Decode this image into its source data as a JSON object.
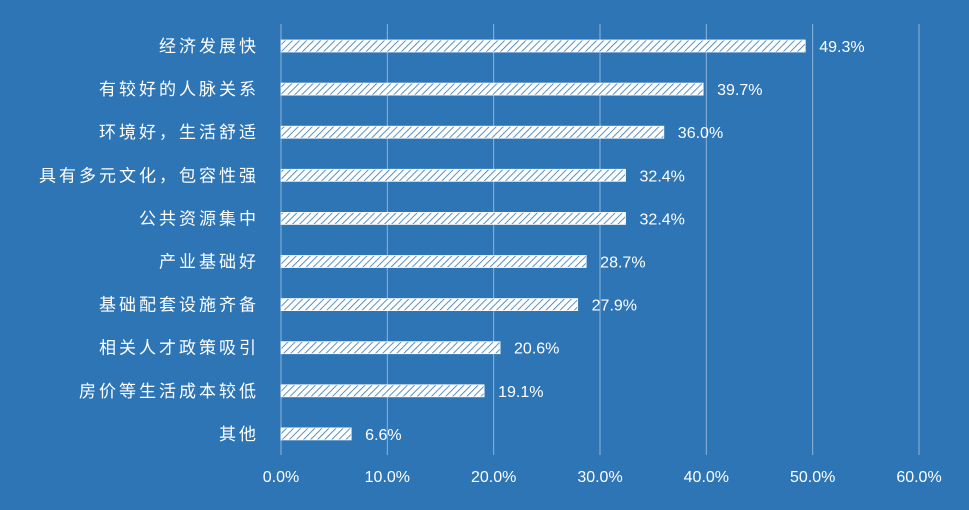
{
  "colors": {
    "background": "#2e75b6",
    "bar_fill": "#ffffff",
    "bar_stripe": "#2e75b6",
    "gridline": "#8fb4da",
    "text": "#ffffff"
  },
  "chart_data": {
    "type": "bar",
    "orientation": "horizontal",
    "bar_pattern": "diagonal-hatch",
    "categories": [
      "经济发展快",
      "有较好的人脉关系",
      "环境好，生活舒适",
      "具有多元文化，包容性强",
      "公共资源集中",
      "产业基础好",
      "基础配套设施齐备",
      "相关人才政策吸引",
      "房价等生活成本较低",
      "其他"
    ],
    "values": [
      49.3,
      39.7,
      36.0,
      32.4,
      32.4,
      28.7,
      27.9,
      20.6,
      19.1,
      6.6
    ],
    "data_labels": [
      "49.3%",
      "39.7%",
      "36.0%",
      "32.4%",
      "32.4%",
      "28.7%",
      "27.9%",
      "20.6%",
      "19.1%",
      "6.6%"
    ],
    "x_ticks": [
      0,
      10,
      20,
      30,
      40,
      50,
      60
    ],
    "x_tick_labels": [
      "0.0%",
      "10.0%",
      "20.0%",
      "30.0%",
      "40.0%",
      "50.0%",
      "60.0%"
    ],
    "xlim": [
      0,
      60
    ],
    "unit": "%",
    "grid": true,
    "legend": false,
    "title": "",
    "xlabel": "",
    "ylabel": ""
  }
}
